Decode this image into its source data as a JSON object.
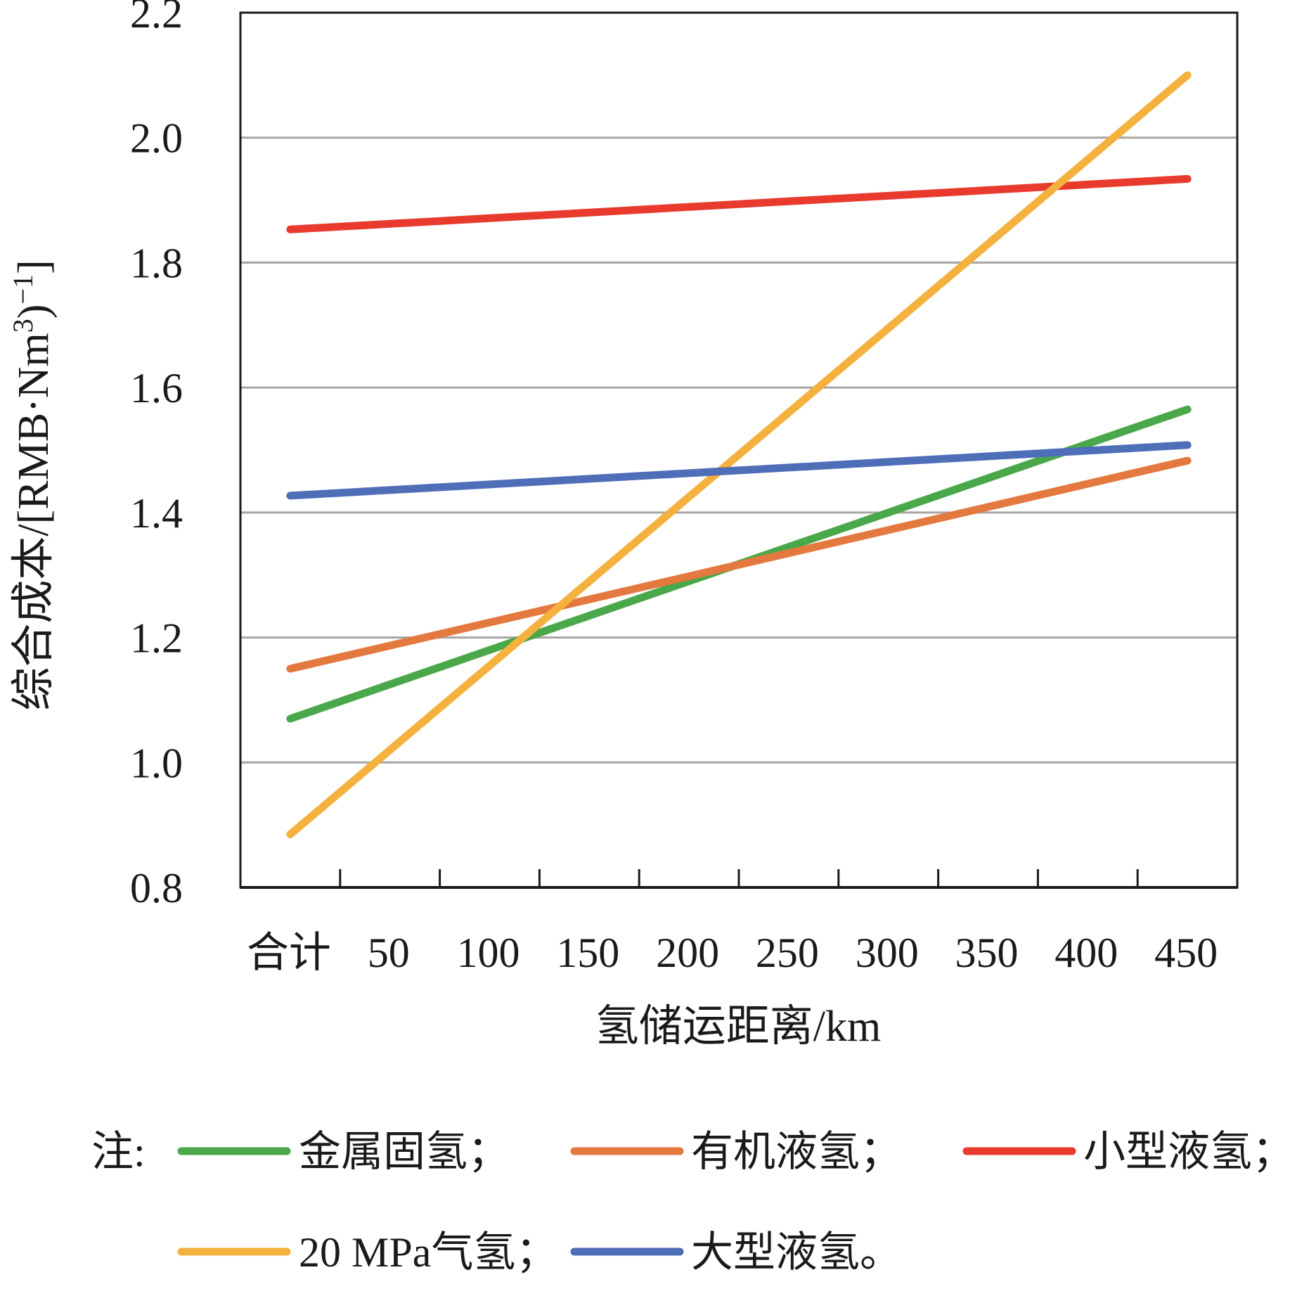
{
  "chart_data": {
    "type": "line",
    "categories": [
      "合计",
      "50",
      "100",
      "150",
      "200",
      "250",
      "300",
      "350",
      "400",
      "450"
    ],
    "xlabel": "氢储运距离/km",
    "ylabel": "综合成本/[RMB·Nm",
    "ylabel_sup1": "3",
    "ylabel_mid": ")",
    "ylabel_sup2": "−1",
    "ylabel_end": "]",
    "ylim": [
      0.8,
      2.2
    ],
    "yticks": [
      "0.8",
      "1.0",
      "1.2",
      "1.4",
      "1.6",
      "1.8",
      "2.0",
      "2.2"
    ],
    "grid": true,
    "legend_prefix": "注:",
    "legend_position": "bottom",
    "series": [
      {
        "name": "金属固氢",
        "suffix": "；",
        "color": "#4aa84a",
        "values": [
          1.07,
          1.125,
          1.18,
          1.235,
          1.29,
          1.345,
          1.4,
          1.455,
          1.51,
          1.565
        ]
      },
      {
        "name": "有机液氢",
        "suffix": "；",
        "color": "#e4793f",
        "values": [
          1.15,
          1.187,
          1.224,
          1.261,
          1.298,
          1.335,
          1.372,
          1.409,
          1.446,
          1.483
        ]
      },
      {
        "name": "小型液氢",
        "suffix": "；",
        "color": "#e83b2e",
        "values": [
          1.853,
          1.862,
          1.871,
          1.88,
          1.889,
          1.898,
          1.907,
          1.916,
          1.925,
          1.934
        ]
      },
      {
        "name": "20 MPa气氢",
        "suffix": "；",
        "color": "#f4b13d",
        "values": [
          0.885,
          1.02,
          1.155,
          1.29,
          1.425,
          1.56,
          1.695,
          1.83,
          1.965,
          2.1
        ]
      },
      {
        "name": "大型液氢",
        "suffix": "。",
        "color": "#4f6eb8",
        "values": [
          1.427,
          1.436,
          1.445,
          1.454,
          1.463,
          1.472,
          1.481,
          1.49,
          1.499,
          1.508
        ]
      }
    ]
  }
}
